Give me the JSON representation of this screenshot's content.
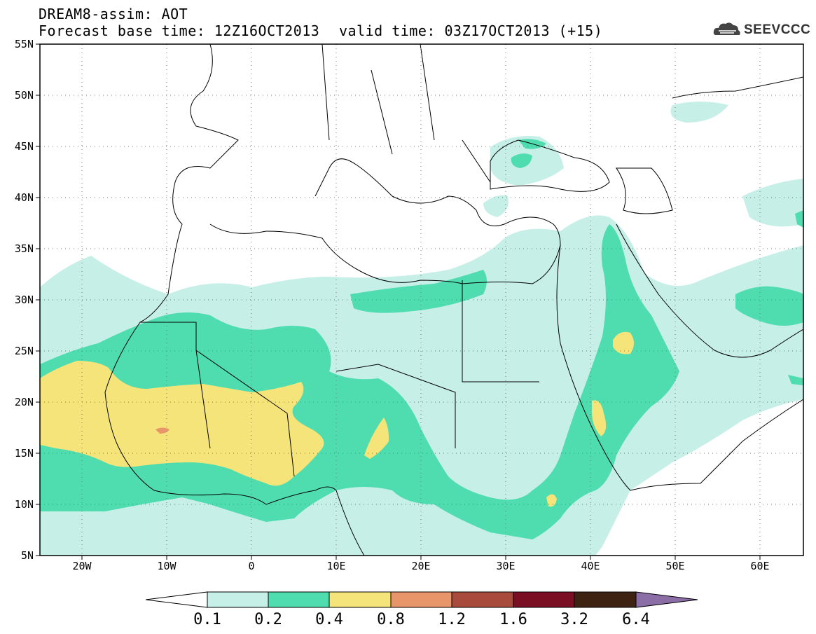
{
  "header": {
    "title_line1": "DREAM8-assim: AOT",
    "title_line2": "Forecast base time: 12Z16OCT2013",
    "valid_time": "valid time: 03Z17OCT2013 (+15)",
    "logo_text": "SEEVCCC",
    "logo_icon": "cloud-logo-icon"
  },
  "map": {
    "lat_labels": [
      "55N",
      "50N",
      "45N",
      "40N",
      "35N",
      "30N",
      "25N",
      "20N",
      "15N",
      "10N",
      "5N"
    ],
    "lon_labels": [
      "20W",
      "10W",
      "0",
      "10E",
      "20E",
      "30E",
      "40E",
      "50E",
      "60E"
    ],
    "lon_range": [
      -25,
      65
    ],
    "lat_range": [
      5,
      55
    ],
    "grid": "dotted"
  },
  "colorbar": {
    "labels": [
      "0.1",
      "0.2",
      "0.4",
      "0.8",
      "1.2",
      "1.6",
      "3.2",
      "6.4"
    ],
    "colors": {
      "below": "#ffffff",
      "c1": "#c6efe8",
      "c2": "#4fdcae",
      "c3": "#f5e47a",
      "c4": "#e8956a",
      "c5": "#a84a3c",
      "c6": "#7a0f24",
      "c7": "#3e2313",
      "above": "#8c6ea6"
    }
  }
}
